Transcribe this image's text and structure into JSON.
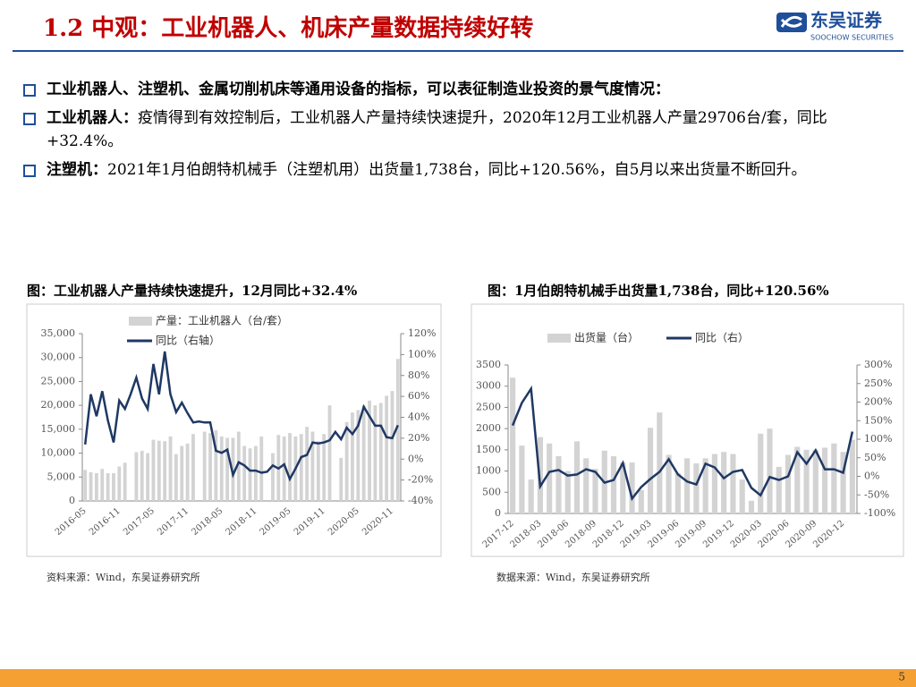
{
  "header": {
    "title": "1.2 中观：工业机器人、机床产量数据持续好转",
    "logo_cn": "东吴证券",
    "logo_en": "SOOCHOW SECURITIES"
  },
  "bullets": [
    {
      "label": "工业机器人、注塑机、金属切削机床等通用设备的指标，可以表征制造业投资的景气度情况："
    },
    {
      "label": "工业机器人：",
      "text": "疫情得到有效控制后，工业机器人产量持续快速提升，2020年12月工业机器人产量29706台/套，同比+32.4%。"
    },
    {
      "label": "注塑机：",
      "text": "2021年1月伯朗特机械手（注塑机用）出货量1,738台，同比+120.56%，自5月以来出货量不断回升。"
    }
  ],
  "chart_data": [
    {
      "type": "combo",
      "title": "图：工业机器人产量持续快速提升，12月同比+32.4%",
      "source": "资料来源：Wind，东吴证券研究所",
      "categories": [
        "2016-05",
        null,
        null,
        null,
        null,
        null,
        "2016-11",
        null,
        null,
        null,
        null,
        null,
        "2017-05",
        null,
        null,
        null,
        null,
        null,
        "2017-11",
        null,
        null,
        null,
        null,
        null,
        "2018-05",
        null,
        null,
        null,
        null,
        null,
        "2018-11",
        null,
        null,
        null,
        null,
        null,
        "2019-05",
        null,
        null,
        null,
        null,
        null,
        "2019-11",
        null,
        null,
        null,
        null,
        null,
        "2020-05",
        null,
        null,
        null,
        null,
        null,
        "2020-11",
        null
      ],
      "series": [
        {
          "name": "产量：工业机器人（台/套）",
          "type": "bar",
          "color": "#d3d3d3",
          "values": [
            6500,
            6000,
            5800,
            6700,
            5800,
            5800,
            7200,
            8000,
            null,
            10200,
            10500,
            10000,
            12800,
            12600,
            12500,
            13500,
            9800,
            11500,
            12000,
            14000,
            null,
            14500,
            14200,
            14800,
            13500,
            13200,
            13200,
            14500,
            11500,
            11000,
            11500,
            13500,
            null,
            10000,
            13800,
            13500,
            14200,
            13500,
            14000,
            15500,
            14500,
            12500,
            14000,
            20000,
            null,
            9000,
            16500,
            18500,
            19000,
            20000,
            21000,
            20000,
            20500,
            22000,
            23000,
            29706
          ]
        },
        {
          "name": "同比（右轴）",
          "type": "line",
          "color": "#1f3864",
          "axis": "y2",
          "values": [
            14,
            62,
            41,
            65,
            37,
            16,
            56,
            48,
            62,
            78,
            58,
            48,
            91,
            62,
            103,
            62,
            45,
            54,
            44,
            35,
            36,
            35,
            35,
            8,
            6,
            9,
            -15,
            -3,
            -6,
            -11,
            -11,
            -13,
            -12,
            -6,
            -9,
            -5,
            -19,
            -9,
            2,
            4,
            16,
            15,
            16,
            18,
            26,
            19,
            30,
            24,
            32,
            50,
            41,
            32,
            32,
            21,
            20,
            32.4
          ]
        }
      ],
      "ylim": [
        0,
        35000
      ],
      "yticks": [
        0,
        {
          "value": 5000,
          "label": "5,000"
        },
        {
          "value": 10000,
          "label": "10,000"
        },
        {
          "value": 15000,
          "label": "15,000"
        },
        {
          "value": 20000,
          "label": "20,000"
        },
        {
          "value": 25000,
          "label": "25,000"
        },
        {
          "value": 30000,
          "label": "30,000"
        },
        {
          "value": 35000,
          "label": "35,000"
        }
      ],
      "y2lim": [
        -40,
        120
      ],
      "y2ticks": [
        {
          "value": -40,
          "label": "-40%"
        },
        {
          "value": -20,
          "label": "-20%"
        },
        {
          "value": 0,
          "label": "0%"
        },
        {
          "value": 20,
          "label": "20%"
        },
        {
          "value": 40,
          "label": "40%"
        },
        {
          "value": 60,
          "label": "60%"
        },
        {
          "value": 80,
          "label": "80%"
        },
        {
          "value": 100,
          "label": "100%"
        },
        {
          "value": 120,
          "label": "120%"
        }
      ]
    },
    {
      "type": "combo",
      "title": "图：1月伯朗特机械手出货量1,738台，同比+120.56%",
      "source": "数据来源：Wind，东吴证券研究所",
      "categories": [
        "2017-12",
        null,
        null,
        "2018-03",
        null,
        null,
        "2018-06",
        null,
        null,
        "2018-09",
        null,
        null,
        "2018-12",
        null,
        null,
        "2019-03",
        null,
        null,
        "2019-06",
        null,
        null,
        "2019-09",
        null,
        null,
        "2019-12",
        null,
        null,
        "2020-03",
        null,
        null,
        "2020-06",
        null,
        null,
        "2020-09",
        null,
        null,
        "2020-12",
        null
      ],
      "series": [
        {
          "name": "出货量（台）",
          "type": "bar",
          "color": "#d3d3d3",
          "values": [
            3200,
            1600,
            800,
            1800,
            1650,
            1350,
            1000,
            1700,
            1300,
            1050,
            1480,
            1350,
            1200,
            1200,
            550,
            2020,
            2380,
            1380,
            950,
            1300,
            1180,
            1300,
            1400,
            1450,
            1400,
            800,
            300,
            1880,
            2000,
            1100,
            1380,
            1570,
            1500,
            1500,
            1550,
            1650,
            1450,
            1738
          ]
        },
        {
          "name": "同比（右）",
          "type": "line",
          "color": "#1f3864",
          "axis": "y2",
          "values": [
            137,
            198,
            236,
            -27,
            12,
            17,
            2,
            5,
            19,
            12,
            -17,
            -10,
            36,
            -60,
            -29,
            -7,
            12,
            46,
            5,
            -14,
            -22,
            34,
            24,
            -5,
            12,
            17,
            -31,
            -51,
            -2,
            -10,
            0,
            65,
            34,
            70,
            19,
            19,
            10,
            120.56
          ]
        }
      ],
      "ylim": [
        0,
        3500
      ],
      "yticks": [
        0,
        500,
        1000,
        1500,
        2000,
        2500,
        3000,
        3500
      ],
      "y2lim": [
        -100,
        300
      ],
      "y2ticks": [
        {
          "value": -100,
          "label": "-100%"
        },
        {
          "value": -50,
          "label": "-50%"
        },
        {
          "value": 0,
          "label": "0%"
        },
        {
          "value": 50,
          "label": "50%"
        },
        {
          "value": 100,
          "label": "100%"
        },
        {
          "value": 150,
          "label": "150%"
        },
        {
          "value": 200,
          "label": "200%"
        },
        {
          "value": 250,
          "label": "250%"
        },
        {
          "value": 300,
          "label": "300%"
        }
      ]
    }
  ],
  "page_number": 5
}
